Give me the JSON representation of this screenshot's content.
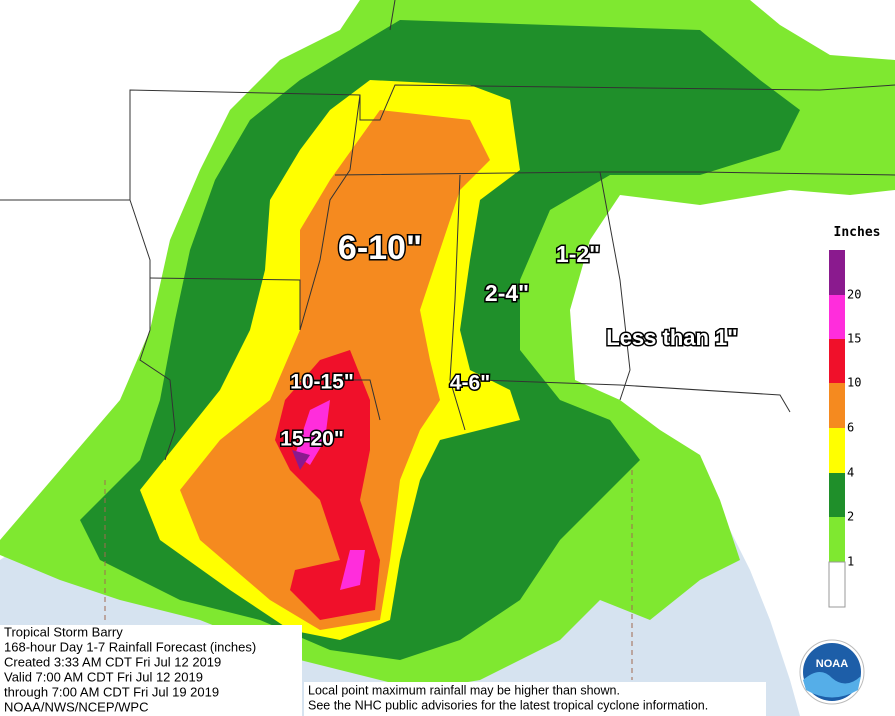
{
  "regions": [
    {
      "text": "6-10\""
    },
    {
      "text": "1-2\""
    },
    {
      "text": "2-4\""
    },
    {
      "text": "Less than 1\""
    },
    {
      "text": "10-15\""
    },
    {
      "text": "4-6\""
    },
    {
      "text": "15-20\""
    }
  ],
  "legend": {
    "title": "Inches",
    "ticks": [
      20,
      15,
      10,
      6,
      4,
      2,
      1
    ]
  },
  "info": {
    "lines": [
      "Tropical Storm Barry",
      "168-hour Day 1-7 Rainfall Forecast (inches)",
      "Created 3:33 AM CDT Fri Jul 12 2019",
      "Valid 7:00 AM CDT Fri Jul 12 2019",
      "through 7:00 AM CDT Fri Jul 19 2019",
      "NOAA/NWS/NCEP/WPC"
    ]
  },
  "disclaimer": {
    "lines": [
      "Local point maximum rainfall may be higher than shown.",
      "See the NHC public advisories for the latest tropical cyclone information."
    ]
  },
  "logo": {
    "text": "NOAA"
  }
}
